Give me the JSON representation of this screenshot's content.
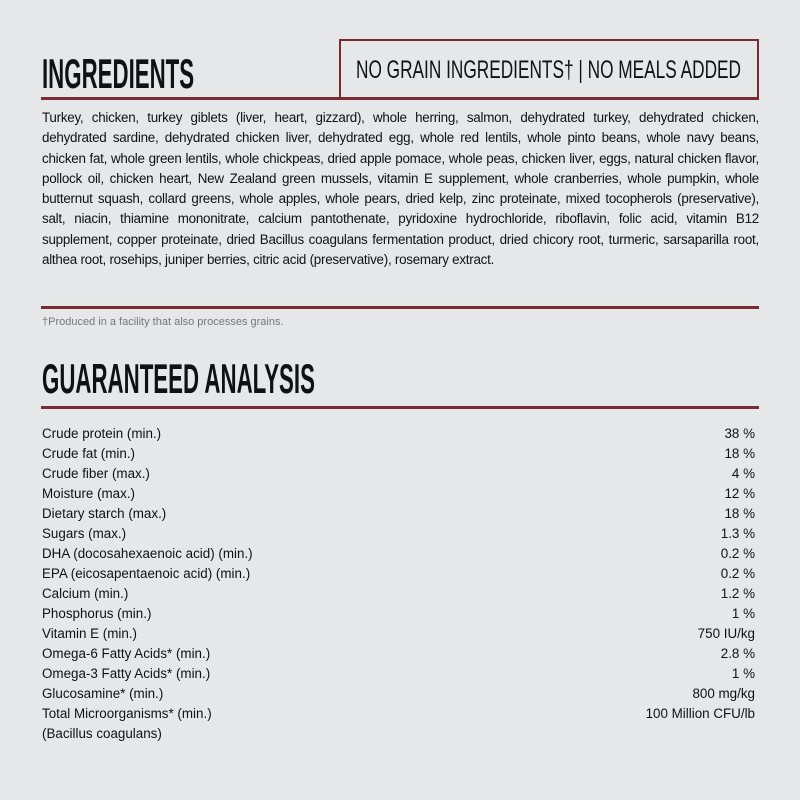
{
  "colors": {
    "accent": "#7a2a33",
    "background": "#e6e7e9"
  },
  "ingredients": {
    "title": "INGREDIENTS",
    "badge": "NO GRAIN INGREDIENTS† | NO MEALS ADDED",
    "text": "Turkey, chicken, turkey giblets (liver, heart, gizzard), whole herring, salmon, dehydrated turkey, dehydrated chicken, dehydrated sardine, dehydrated chicken liver, dehydrated egg, whole red lentils, whole pinto beans, whole navy beans, chicken fat, whole green lentils, whole chickpeas, dried apple pomace, whole peas, chicken liver, eggs, natural chicken flavor, pollock oil, chicken heart, New Zealand green mussels, vitamin E supplement, whole cranberries, whole pumpkin, whole butternut squash, collard greens, whole apples, whole pears, dried kelp, zinc proteinate, mixed tocopherols (preservative), salt, niacin, thiamine mononitrate, calcium pantothenate, pyridoxine hydrochloride, riboflavin, folic acid, vitamin B12 supplement, copper proteinate, dried Bacillus coagulans fermentation product, dried chicory root, turmeric, sarsaparilla root, althea root, rosehips, juniper berries, citric acid (preservative), rosemary extract.",
    "footnote": "†Produced in a facility that also processes grains."
  },
  "analysis": {
    "title": "GUARANTEED ANALYSIS",
    "rows": [
      {
        "label": "Crude protein (min.)",
        "value": "38 %"
      },
      {
        "label": "Crude fat (min.)",
        "value": "18 %"
      },
      {
        "label": "Crude fiber (max.)",
        "value": "4 %"
      },
      {
        "label": "Moisture (max.)",
        "value": "12 %"
      },
      {
        "label": "Dietary starch (max.)",
        "value": "18 %"
      },
      {
        "label": "Sugars (max.)",
        "value": "1.3 %"
      },
      {
        "label": "DHA (docosahexaenoic acid) (min.)",
        "value": "0.2 %"
      },
      {
        "label": "EPA (eicosapentaenoic acid) (min.)",
        "value": "0.2 %"
      },
      {
        "label": "Calcium (min.)",
        "value": "1.2 %"
      },
      {
        "label": "Phosphorus (min.)",
        "value": "1 %"
      },
      {
        "label": "Vitamin E (min.)",
        "value": "750 IU/kg"
      },
      {
        "label": "Omega-6 Fatty Acids* (min.)",
        "value": "2.8 %"
      },
      {
        "label": "Omega-3 Fatty Acids* (min.)",
        "value": "1 %"
      },
      {
        "label": "Glucosamine* (min.)",
        "value": "800 mg/kg"
      },
      {
        "label": "Total Microorganisms* (min.)",
        "value": "100 Million CFU/lb"
      },
      {
        "label": "(Bacillus coagulans)",
        "value": ""
      }
    ]
  }
}
